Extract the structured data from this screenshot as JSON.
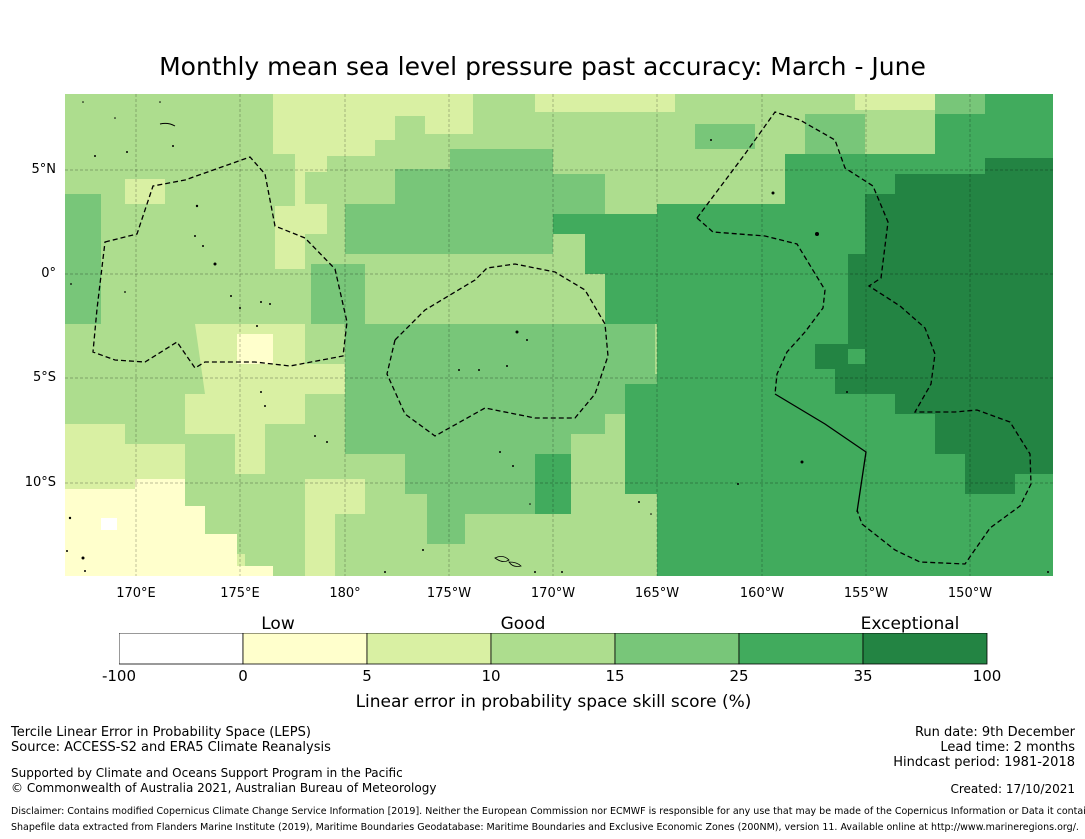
{
  "title": "Monthly mean sea level pressure past accuracy: March - June",
  "map": {
    "lat_labels": [
      "5°N",
      "0°",
      "5°S",
      "10°S"
    ],
    "lon_labels": [
      "170°E",
      "175°E",
      "180°",
      "175°W",
      "170°W",
      "165°W",
      "160°W",
      "155°W",
      "150°W"
    ],
    "lon_range": [
      "172.5°E",
      "146°W"
    ],
    "lat_range": [
      "14°S",
      "8.5°N"
    ],
    "colors": [
      "#ffffff",
      "#ffffcc",
      "#d9f0a3",
      "#addd8e",
      "#78c679",
      "#41ab5d",
      "#238443"
    ]
  },
  "colorbar": {
    "category_labels": [
      "Low",
      "Good",
      "Exceptional"
    ],
    "tick_labels": [
      "-100",
      "0",
      "5",
      "10",
      "15",
      "25",
      "35",
      "100"
    ],
    "title": "Linear error in probability space skill score (%)",
    "bins": [
      {
        "from": -100,
        "to": 0,
        "color": "#ffffff"
      },
      {
        "from": 0,
        "to": 5,
        "color": "#ffffcc"
      },
      {
        "from": 5,
        "to": 10,
        "color": "#d9f0a3"
      },
      {
        "from": 10,
        "to": 15,
        "color": "#addd8e"
      },
      {
        "from": 15,
        "to": 25,
        "color": "#78c679"
      },
      {
        "from": 25,
        "to": 35,
        "color": "#41ab5d"
      },
      {
        "from": 35,
        "to": 100,
        "color": "#238443"
      }
    ]
  },
  "footer": {
    "line1": "Tercile Linear Error in Probability Space (LEPS)",
    "line2": "Source: ACCESS-S2 and ERA5 Climate Reanalysis",
    "support": "Supported by Climate and Oceans Support Program in the Pacific",
    "copyright": "© Commonwealth of Australia 2021, Australian Bureau of Meteorology",
    "run_date": "Run date: 9th December",
    "lead_time": "Lead time: 2 months",
    "hindcast": "Hindcast period: 1981-2018",
    "created": "Created: 17/10/2021",
    "disclaimer": "Disclaimer: Contains modified Copernicus Climate Change Service Information [2019]. Neither the European Commission nor ECMWF is responsible for any use that may be made of the Copernicus Information or Data it contains.",
    "shapefile": "Shapefile data extracted from Flanders Marine Institute (2019), Maritime Boundaries Geodatabase: Maritime Boundaries and Exclusive Economic Zones (200NM), version 11. Available online at http://www.marineregions.org/."
  }
}
